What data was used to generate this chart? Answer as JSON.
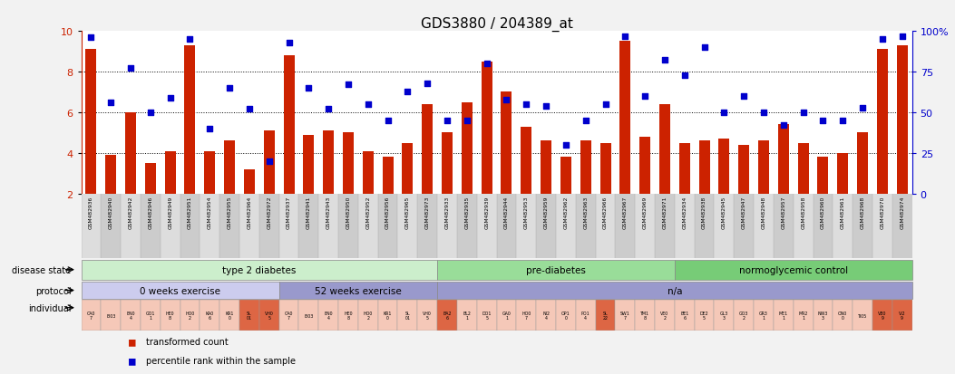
{
  "title": "GDS3880 / 204389_at",
  "gsm_ids": [
    "GSM482936",
    "GSM482940",
    "GSM482942",
    "GSM482946",
    "GSM482949",
    "GSM482951",
    "GSM482954",
    "GSM482955",
    "GSM482964",
    "GSM482972",
    "GSM482937",
    "GSM482941",
    "GSM482943",
    "GSM482950",
    "GSM482952",
    "GSM482956",
    "GSM482965",
    "GSM482973",
    "GSM482933",
    "GSM482935",
    "GSM482939",
    "GSM482944",
    "GSM482953",
    "GSM482959",
    "GSM482962",
    "GSM482963",
    "GSM482966",
    "GSM482967",
    "GSM482969",
    "GSM482971",
    "GSM482934",
    "GSM482938",
    "GSM482945",
    "GSM482947",
    "GSM482948",
    "GSM482957",
    "GSM482958",
    "GSM482960",
    "GSM482961",
    "GSM482968",
    "GSM482970",
    "GSM482974"
  ],
  "bar_values": [
    9.1,
    3.9,
    6.0,
    3.5,
    4.1,
    9.3,
    4.1,
    4.6,
    3.2,
    5.1,
    8.8,
    4.9,
    5.1,
    5.0,
    4.1,
    3.8,
    4.5,
    6.4,
    5.0,
    6.5,
    8.5,
    7.0,
    5.3,
    4.6,
    3.8,
    4.6,
    4.5,
    9.5,
    4.8,
    6.4,
    4.5,
    4.6,
    4.7,
    4.4,
    4.6,
    5.4,
    4.5,
    3.8,
    4.0,
    5.0,
    9.1,
    9.3
  ],
  "dot_values": [
    96,
    56,
    77,
    50,
    59,
    95,
    40,
    65,
    52,
    20,
    93,
    65,
    52,
    67,
    55,
    45,
    63,
    68,
    45,
    45,
    80,
    58,
    55,
    54,
    30,
    45,
    55,
    97,
    60,
    82,
    73,
    90,
    50,
    60,
    50,
    42,
    50,
    45,
    45,
    53,
    95,
    97
  ],
  "ylim_left": [
    2,
    10
  ],
  "ylim_right": [
    0,
    100
  ],
  "yticks_left": [
    2,
    4,
    6,
    8,
    10
  ],
  "yticks_right": [
    0,
    25,
    50,
    75,
    100
  ],
  "bar_color": "#cc2200",
  "dot_color": "#0000cc",
  "bg_color": "#f2f2f2",
  "plot_bg_color": "#ffffff",
  "left_axis_color": "#cc2200",
  "right_axis_color": "#0000cc",
  "xtick_bg_color": "#dddddd",
  "disease_groups": [
    {
      "label": "type 2 diabetes",
      "start": 0,
      "end": 17,
      "color": "#cceecc"
    },
    {
      "label": "pre-diabetes",
      "start": 18,
      "end": 29,
      "color": "#99dd99"
    },
    {
      "label": "normoglycemic control",
      "start": 30,
      "end": 41,
      "color": "#77cc77"
    }
  ],
  "protocol_groups": [
    {
      "label": "0 weeks exercise",
      "start": 0,
      "end": 9,
      "color": "#ccccee"
    },
    {
      "label": "52 weeks exercise",
      "start": 10,
      "end": 17,
      "color": "#9999cc"
    },
    {
      "label": "n/a",
      "start": 18,
      "end": 41,
      "color": "#9999cc"
    }
  ],
  "individual_labels": [
    "CA0\n7",
    "EI03",
    "EN0\n4",
    "GO1\n1",
    "HE0\n8",
    "HO0\n2",
    "KA0\n6",
    "KR1\n0",
    "SL\n01",
    "VH0\n5",
    "CA0\n7",
    "EI03",
    "EN0\n4",
    "HE0\n8",
    "HO0\n2",
    "KR1\n0",
    "SL\n01",
    "VH0\n5",
    "BA2\n6",
    "BL2\n1",
    "DO1\n5",
    "GA0\n1",
    "HO0\n7",
    "NI2\n4",
    "OP1\n0",
    "PO1\n4",
    "SL\n22",
    "SW1\n7",
    "TM1\n8",
    "VE0\n2",
    "BE1\n6",
    "DE2\n5",
    "GL3\n3",
    "GO3\n2",
    "GR3\n1",
    "ME1\n1",
    "MR2\n1",
    "NW3\n3",
    "ON0\n0",
    "TI05",
    "VB0\n9",
    "VI2\n9"
  ],
  "individual_highlight_indices": [
    8,
    9,
    18,
    26,
    40,
    41
  ],
  "individual_cell_normal": "#f5c8b8",
  "individual_cell_highlight": "#dd6644",
  "legend_items": [
    {
      "color": "#cc2200",
      "label": "transformed count"
    },
    {
      "color": "#0000cc",
      "label": "percentile rank within the sample"
    }
  ]
}
